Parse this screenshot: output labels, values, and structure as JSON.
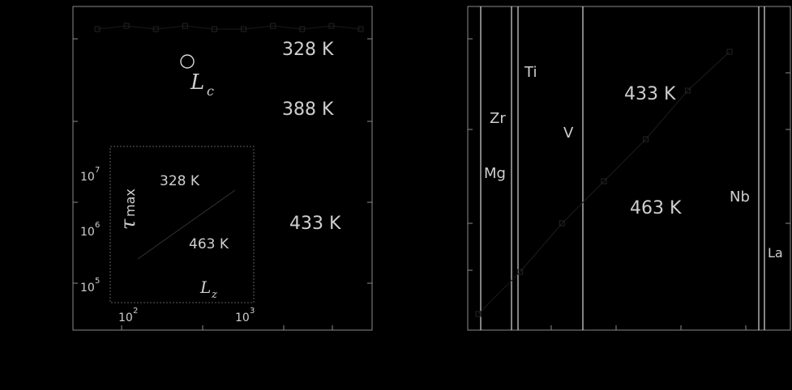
{
  "chart_data": [
    {
      "type": "scatter",
      "panel": "left",
      "series": [
        {
          "values": [
            0.93,
            0.94,
            0.93,
            0.94,
            0.93,
            0.93,
            0.94,
            0.93,
            0.94,
            0.93
          ]
        }
      ],
      "annotations": {
        "temp_328": "328 K",
        "temp_388": "388 K",
        "temp_433": "433 K",
        "lc_label": "L",
        "lc_sub": "c"
      },
      "inset": {
        "type": "line",
        "ylabel_main": "τ",
        "ylabel_sub": "max",
        "xlabel_main": "L",
        "xlabel_sub": "z",
        "yticks": [
          {
            "base": "10",
            "exp": "7"
          },
          {
            "base": "10",
            "exp": "6"
          },
          {
            "base": "10",
            "exp": "5"
          }
        ],
        "xticks": [
          {
            "base": "10",
            "exp": "2"
          },
          {
            "base": "10",
            "exp": "3"
          }
        ],
        "annotations": {
          "temp_328": "328 K",
          "temp_463": "463 K"
        }
      }
    },
    {
      "type": "line",
      "panel": "right",
      "annotations": {
        "temp_433": "433 K",
        "temp_463": "463 K"
      },
      "elements": [
        "Mg",
        "Zr",
        "Ti",
        "V",
        "Nb",
        "La"
      ],
      "series": [
        {
          "values": [
            0.05,
            0.18,
            0.33,
            0.46,
            0.59,
            0.74,
            0.86
          ]
        }
      ]
    }
  ]
}
